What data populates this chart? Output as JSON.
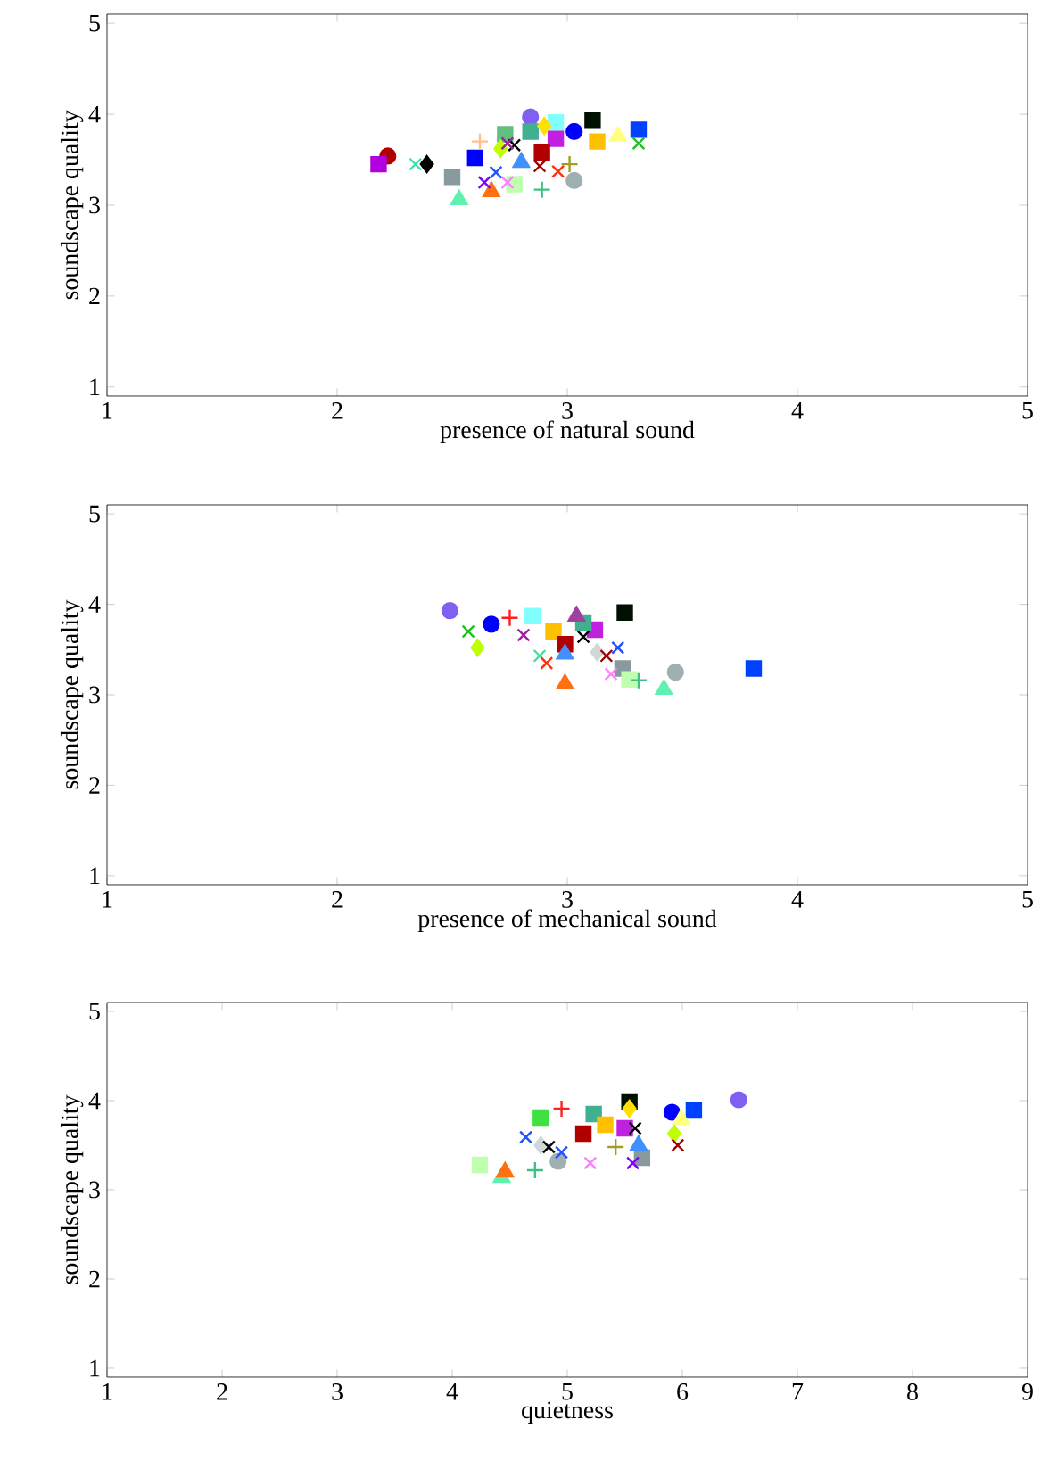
{
  "chart_data": [
    {
      "type": "scatter",
      "xlabel": "presence of natural sound",
      "ylabel": "soundscape quality",
      "xlim": [
        1,
        5
      ],
      "ylim": [
        0.9,
        5.1
      ],
      "xticks": [
        1,
        2,
        3,
        4,
        5
      ],
      "yticks": [
        1,
        2,
        3,
        4,
        5
      ],
      "series": [
        {
          "marker": "circle",
          "x": [
            2.22,
            2.84,
            3.03,
            3.03
          ],
          "values": [
            3.54,
            3.97,
            3.27,
            3.81
          ],
          "colors": [
            "#b00000",
            "#8060f0",
            "#a0b0b0",
            "#0000ff"
          ]
        },
        {
          "marker": "square",
          "x": [
            2.18,
            2.5,
            2.6,
            2.77,
            2.73,
            2.95,
            2.84,
            2.95,
            2.89,
            3.11,
            3.13,
            3.31
          ],
          "values": [
            3.45,
            3.31,
            3.52,
            3.23,
            3.78,
            3.91,
            3.81,
            3.73,
            3.58,
            3.93,
            3.7,
            3.83
          ],
          "colors": [
            "#b000e0",
            "#8899a0",
            "#0000ff",
            "#c0ffb0",
            "#60c080",
            "#80ffff",
            "#40b090",
            "#c020e0",
            "#b00000",
            "#001000",
            "#ffc000",
            "#0040ff"
          ]
        },
        {
          "marker": "triangle",
          "x": [
            2.53,
            2.67,
            2.8,
            3.22
          ],
          "values": [
            3.06,
            3.15,
            3.47,
            3.76
          ],
          "colors": [
            "#60f0b0",
            "#ff7010",
            "#4090ff",
            "#ffff80"
          ]
        },
        {
          "marker": "diamond",
          "x": [
            2.39,
            2.9,
            2.71
          ],
          "values": [
            3.45,
            3.87,
            3.62
          ],
          "colors": [
            "#000000",
            "#ffe000",
            "#c0ff00"
          ]
        },
        {
          "marker": "cross",
          "x": [
            2.34,
            2.64,
            2.77,
            2.74,
            2.88,
            2.96
          ],
          "values": [
            3.45,
            3.25,
            3.66,
            3.68,
            3.43,
            3.37
          ],
          "colors": [
            "#40e0a0",
            "#8000ff",
            "#000000",
            "#a020a0",
            "#a00000",
            "#ff3010"
          ]
        },
        {
          "marker": "cross",
          "x": [
            2.74,
            2.69,
            3.31
          ],
          "values": [
            3.25,
            3.36,
            3.68
          ],
          "colors": [
            "#ff80ff",
            "#2050ff",
            "#20c020"
          ]
        },
        {
          "marker": "plus",
          "x": [
            2.62,
            3.01,
            2.89
          ],
          "values": [
            3.7,
            3.45,
            3.17
          ],
          "colors": [
            "#ffc090",
            "#a0a020",
            "#40c080"
          ]
        }
      ]
    },
    {
      "type": "scatter",
      "xlabel": "presence of mechanical sound",
      "ylabel": "soundscape quality",
      "xlim": [
        1,
        5
      ],
      "ylim": [
        0.9,
        5.1
      ],
      "xticks": [
        1,
        2,
        3,
        4,
        5
      ],
      "yticks": [
        1,
        2,
        3,
        4,
        5
      ],
      "series": [
        {
          "marker": "circle",
          "x": [
            2.49,
            2.67,
            3.47
          ],
          "values": [
            3.93,
            3.78,
            3.25
          ],
          "colors": [
            "#8060f0",
            "#0000ff",
            "#a0b0b0"
          ]
        },
        {
          "marker": "square",
          "x": [
            2.85,
            2.94,
            2.99,
            3.12,
            3.07,
            3.25,
            3.24,
            3.27,
            3.81
          ],
          "values": [
            3.87,
            3.7,
            3.56,
            3.72,
            3.8,
            3.91,
            3.29,
            3.17,
            3.29
          ],
          "colors": [
            "#80ffff",
            "#ffc000",
            "#b00000",
            "#c020e0",
            "#40b090",
            "#001000",
            "#8899a0",
            "#c0ffb0",
            "#0040ff"
          ]
        },
        {
          "marker": "triangle",
          "x": [
            2.99,
            2.99,
            3.04,
            3.42
          ],
          "values": [
            3.45,
            3.12,
            3.87,
            3.06
          ],
          "colors": [
            "#4090ff",
            "#ff7010",
            "#a040a0",
            "#60f0b0"
          ]
        },
        {
          "marker": "diamond",
          "x": [
            2.61,
            3.13
          ],
          "values": [
            3.52,
            3.47
          ],
          "colors": [
            "#c0ff00",
            "#d0d8d8"
          ]
        },
        {
          "marker": "cross",
          "x": [
            2.81,
            2.88,
            2.91,
            3.17
          ],
          "values": [
            3.66,
            3.43,
            3.35,
            3.43
          ],
          "colors": [
            "#a020a0",
            "#40e0a0",
            "#ff3010",
            "#a00000"
          ]
        },
        {
          "marker": "cross",
          "x": [
            2.57,
            3.07,
            3.22,
            3.19
          ],
          "values": [
            3.7,
            3.64,
            3.52,
            3.23
          ],
          "colors": [
            "#20c020",
            "#000000",
            "#2050ff",
            "#ff80ff"
          ]
        },
        {
          "marker": "plus",
          "x": [
            2.75,
            3.31
          ],
          "values": [
            3.85,
            3.16
          ],
          "colors": [
            "#ff2020",
            "#40c080"
          ]
        }
      ]
    },
    {
      "type": "scatter",
      "xlabel": "quietness",
      "ylabel": "soundscape quality",
      "xlim": [
        1,
        9
      ],
      "ylim": [
        0.9,
        5.1
      ],
      "xticks": [
        1,
        2,
        3,
        4,
        5,
        6,
        7,
        8,
        9
      ],
      "yticks": [
        1,
        2,
        3,
        4,
        5
      ],
      "series": [
        {
          "marker": "circle",
          "x": [
            4.92,
            5.91,
            6.49
          ],
          "values": [
            3.32,
            3.87,
            4.01
          ],
          "colors": [
            "#a0b0b0",
            "#0000ff",
            "#8060f0"
          ]
        },
        {
          "marker": "square",
          "x": [
            4.24,
            4.77,
            5.14,
            5.23,
            5.33,
            5.54,
            5.5,
            5.65,
            6.1
          ],
          "values": [
            3.28,
            3.81,
            3.63,
            3.85,
            3.73,
            3.99,
            3.69,
            3.36,
            3.89
          ],
          "colors": [
            "#c0ffb0",
            "#40e040",
            "#b00000",
            "#40b090",
            "#ffc000",
            "#001000",
            "#c020e0",
            "#8899a0",
            "#0040ff"
          ]
        },
        {
          "marker": "triangle",
          "x": [
            4.43,
            4.46,
            5.62,
            5.99
          ],
          "values": [
            3.14,
            3.2,
            3.5,
            3.79
          ],
          "colors": [
            "#60f0b0",
            "#ff7010",
            "#4090ff",
            "#ffff80"
          ]
        },
        {
          "marker": "diamond",
          "x": [
            5.54,
            5.93,
            4.77
          ],
          "values": [
            3.91,
            3.63,
            3.5
          ],
          "colors": [
            "#ffe000",
            "#c0ff00",
            "#d0d8d8"
          ]
        },
        {
          "marker": "cross",
          "x": [
            4.95,
            5.57,
            5.59,
            5.96
          ],
          "values": [
            3.42,
            3.3,
            3.69,
            3.5
          ],
          "colors": [
            "#2050ff",
            "#8000ff",
            "#000000",
            "#a00000"
          ]
        },
        {
          "marker": "cross",
          "x": [
            4.64,
            4.84,
            5.2
          ],
          "values": [
            3.59,
            3.48,
            3.3
          ],
          "colors": [
            "#2050ff",
            "#000000",
            "#ff80ff"
          ]
        },
        {
          "marker": "plus",
          "x": [
            4.72,
            4.95,
            5.42
          ],
          "values": [
            3.22,
            3.91,
            3.48
          ],
          "colors": [
            "#40c080",
            "#ff2020",
            "#a0a020"
          ]
        }
      ]
    }
  ]
}
